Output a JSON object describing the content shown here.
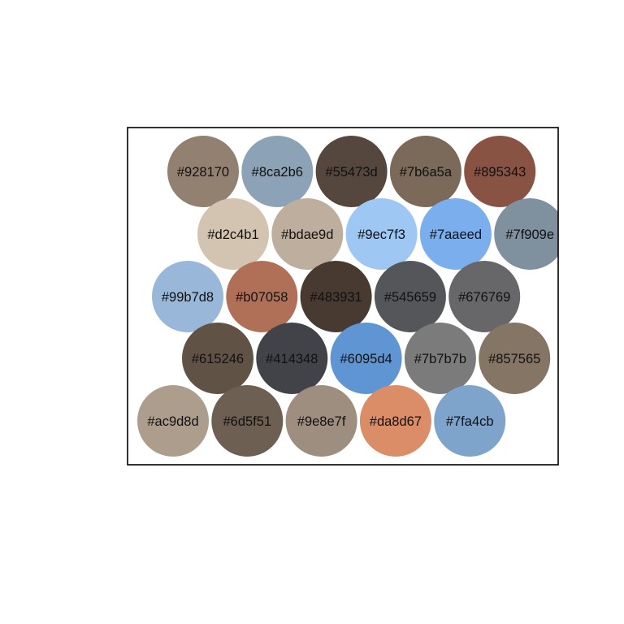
{
  "swatches": [
    {
      "label": "#928170",
      "color": "#928170"
    },
    {
      "label": "#8ca2b6",
      "color": "#8ca2b6"
    },
    {
      "label": "#55473d",
      "color": "#55473d"
    },
    {
      "label": "#7b6a5a",
      "color": "#7b6a5a"
    },
    {
      "label": "#895343",
      "color": "#895343"
    },
    {
      "label": "#d2c4b1",
      "color": "#d2c4b1"
    },
    {
      "label": "#bdae9d",
      "color": "#bdae9d"
    },
    {
      "label": "#9ec7f3",
      "color": "#9ec7f3"
    },
    {
      "label": "#7aaeed",
      "color": "#7aaeed"
    },
    {
      "label": "#7f909e",
      "color": "#7f909e"
    },
    {
      "label": "#99b7d8",
      "color": "#99b7d8"
    },
    {
      "label": "#b07058",
      "color": "#b07058"
    },
    {
      "label": "#483931",
      "color": "#483931"
    },
    {
      "label": "#545659",
      "color": "#545659"
    },
    {
      "label": "#676769",
      "color": "#676769"
    },
    {
      "label": "#615246",
      "color": "#615246"
    },
    {
      "label": "#414348",
      "color": "#414348"
    },
    {
      "label": "#6095d4",
      "color": "#6095d4"
    },
    {
      "label": "#7b7b7b",
      "color": "#7b7b7b"
    },
    {
      "label": "#857565",
      "color": "#857565"
    },
    {
      "label": "#ac9d8d",
      "color": "#ac9d8d"
    },
    {
      "label": "#6d5f51",
      "color": "#6d5f51"
    },
    {
      "label": "#9e8e7f",
      "color": "#9e8e7f"
    },
    {
      "label": "#da8d67",
      "color": "#da8d67"
    },
    {
      "label": "#7fa4cb",
      "color": "#7fa4cb"
    }
  ]
}
